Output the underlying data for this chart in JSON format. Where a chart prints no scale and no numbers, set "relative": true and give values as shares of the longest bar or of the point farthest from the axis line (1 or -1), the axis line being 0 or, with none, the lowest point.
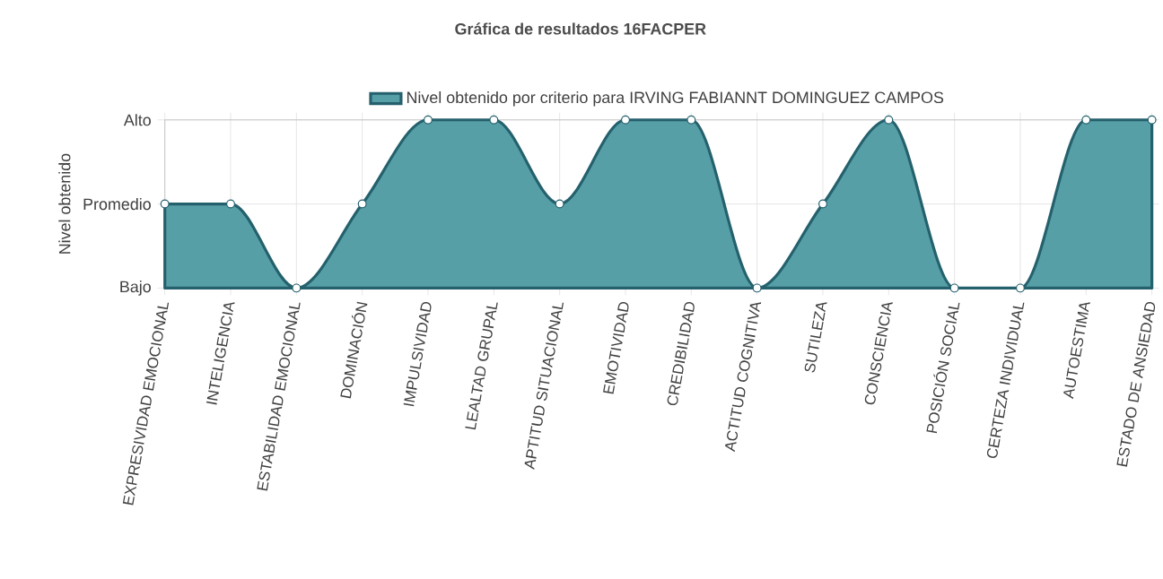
{
  "chart_data": {
    "type": "area",
    "title": "Gráfica de resultados 16FACPER",
    "ylabel": "Nivel obtenido",
    "categories": [
      "EXPRESIVIDAD EMOCIONAL",
      "INTELIGENCIA",
      "ESTABILIDAD EMOCIONAL",
      "DOMINACIÓN",
      "IMPULSIVIDAD",
      "LEALTAD GRUPAL",
      "APTITUD SITUACIONAL",
      "EMOTIVIDAD",
      "CREDIBILIDAD",
      "ACTITUD COGNITIVA",
      "SUTILEZA",
      "CONSCIENCIA",
      "POSICIÓN SOCIAL",
      "CERTEZA INDIVIDUAL",
      "AUTOESTIMA",
      "ESTADO DE ANSIEDAD"
    ],
    "series": [
      {
        "name": "Nivel obtenido por criterio para IRVING FABIANNT DOMINGUEZ CAMPOS",
        "color": "#24616d",
        "values": [
          0.5,
          0.5,
          0,
          0.5,
          1,
          1,
          0.5,
          1,
          1,
          0,
          0.5,
          1,
          0,
          0,
          1,
          1
        ]
      }
    ],
    "relative": true,
    "annotations": [
      "Bajo",
      "Promedio",
      "Alto"
    ],
    "grid": true,
    "legend": "top",
    "marker": "circle",
    "line_style": "solid"
  }
}
